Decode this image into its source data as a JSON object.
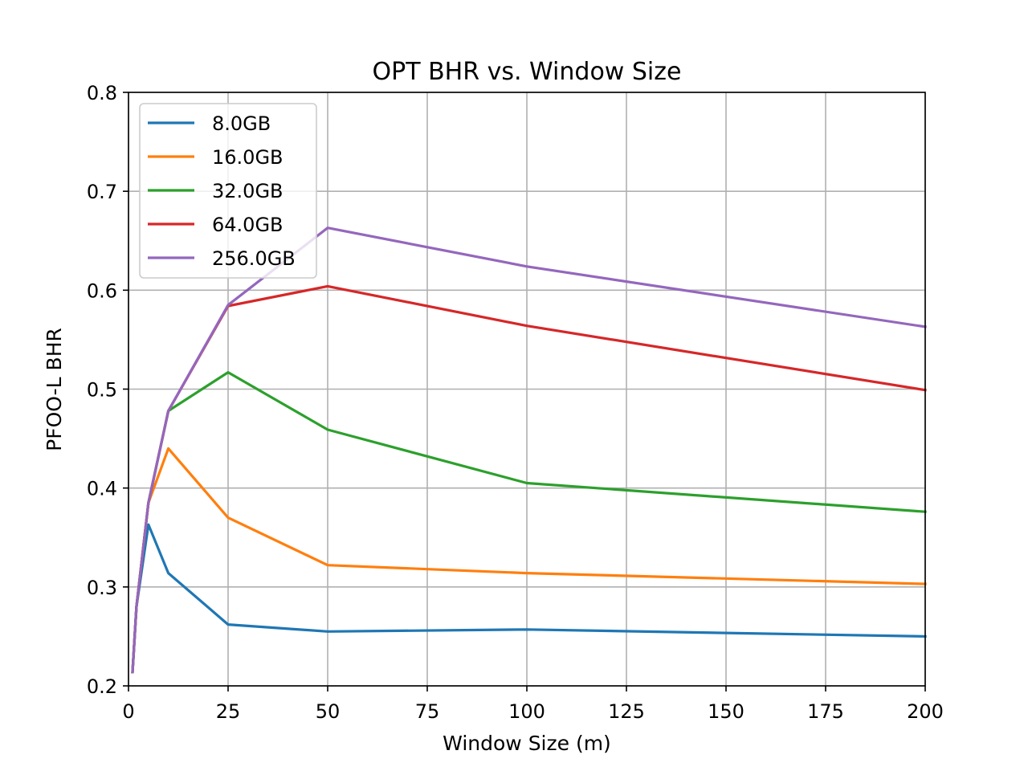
{
  "chart_data": {
    "type": "line",
    "title": "OPT BHR vs. Window Size",
    "xlabel": "Window Size (m)",
    "ylabel": "PFOO-L BHR",
    "xlim": [
      0,
      200
    ],
    "ylim": [
      0.2,
      0.8
    ],
    "xticks": [
      "0",
      "25",
      "50",
      "75",
      "100",
      "125",
      "150",
      "175",
      "200"
    ],
    "xtick_values": [
      0,
      25,
      50,
      75,
      100,
      125,
      150,
      175,
      200
    ],
    "yticks": [
      "0.2",
      "0.3",
      "0.4",
      "0.5",
      "0.6",
      "0.7",
      "0.8"
    ],
    "ytick_values": [
      0.2,
      0.3,
      0.4,
      0.5,
      0.6,
      0.7,
      0.8
    ],
    "grid": true,
    "legend_position": "upper-left",
    "x": [
      1,
      2,
      5,
      10,
      25,
      50,
      100,
      200
    ],
    "series": [
      {
        "name": "8.0GB",
        "color": "#1f77b4",
        "values": [
          0.214,
          0.28,
          0.363,
          0.314,
          0.262,
          0.255,
          0.257,
          0.25
        ]
      },
      {
        "name": "16.0GB",
        "color": "#ff7f0e",
        "values": [
          0.214,
          0.28,
          0.385,
          0.44,
          0.37,
          0.322,
          0.314,
          0.303
        ]
      },
      {
        "name": "32.0GB",
        "color": "#2ca02c",
        "values": [
          0.214,
          0.28,
          0.385,
          0.478,
          0.517,
          0.459,
          0.405,
          0.376
        ]
      },
      {
        "name": "64.0GB",
        "color": "#d62728",
        "values": [
          0.214,
          0.28,
          0.385,
          0.478,
          0.584,
          0.604,
          0.564,
          0.499
        ]
      },
      {
        "name": "256.0GB",
        "color": "#9467bd",
        "values": [
          0.214,
          0.28,
          0.385,
          0.478,
          0.585,
          0.663,
          0.624,
          0.563
        ]
      }
    ]
  }
}
